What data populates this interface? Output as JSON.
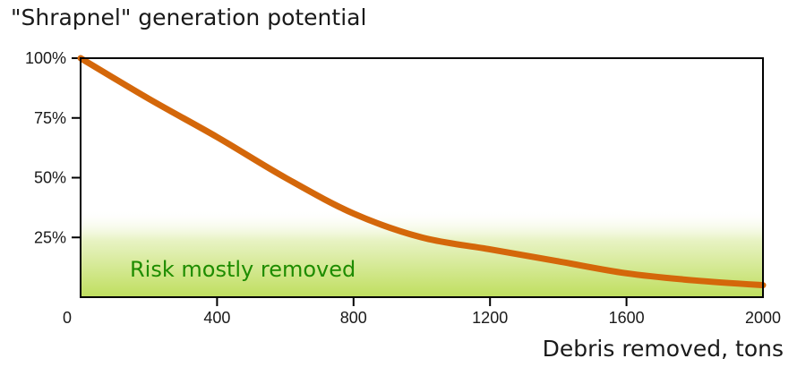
{
  "chart_data": {
    "type": "line",
    "title": "\"Shrapnel\" generation potential",
    "xlabel": "Debris removed, tons",
    "ylabel": "",
    "xlim": [
      0,
      2000
    ],
    "ylim": [
      0,
      100
    ],
    "x_ticks": [
      0,
      400,
      800,
      1200,
      1600,
      2000
    ],
    "x_tick_labels": [
      "0",
      "400",
      "800",
      "1200",
      "1600",
      "2000"
    ],
    "y_ticks": [
      25,
      50,
      75,
      100
    ],
    "y_tick_labels": [
      "25%",
      "50%",
      "75%",
      "100%"
    ],
    "grid": false,
    "legend": "none",
    "series": [
      {
        "color": "#d4670a",
        "x": [
          0,
          200,
          400,
          600,
          800,
          1000,
          1200,
          1400,
          1600,
          1800,
          2000
        ],
        "y": [
          100,
          83,
          67,
          50,
          35,
          25,
          20,
          15,
          10,
          7,
          5
        ]
      }
    ],
    "annotations": [
      {
        "text": "Risk mostly removed",
        "color": "#1e8c00",
        "band_color": "#c2e06a",
        "y_from": 0,
        "y_to": 30
      }
    ]
  }
}
